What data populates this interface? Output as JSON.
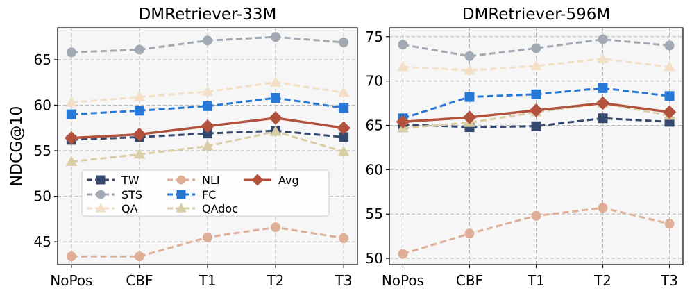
{
  "chart_data": [
    {
      "type": "line",
      "title": "DMRetriever-33M",
      "ylabel": "NDCG@10",
      "xlabel": "",
      "categories": [
        "NoPos",
        "CBF",
        "T1",
        "T2",
        "T3"
      ],
      "ylim": [
        42.5,
        68.5
      ],
      "yticks": [
        45,
        50,
        55,
        60,
        65
      ],
      "grid": true,
      "legend": "center-left",
      "series": [
        {
          "name": "TW",
          "color": "#34496b",
          "marker": "square",
          "values": [
            56.2,
            56.5,
            56.9,
            57.2,
            56.5
          ]
        },
        {
          "name": "STS",
          "color": "#a1a9b2",
          "marker": "circle",
          "values": [
            65.8,
            66.1,
            67.1,
            67.5,
            66.9
          ]
        },
        {
          "name": "QA",
          "color": "#f2dfc6",
          "marker": "triangle",
          "values": [
            60.3,
            60.9,
            61.5,
            62.5,
            61.4
          ]
        },
        {
          "name": "NLI",
          "color": "#dfae96",
          "marker": "circle",
          "values": [
            43.4,
            43.4,
            45.5,
            46.6,
            45.4
          ]
        },
        {
          "name": "FC",
          "color": "#2777d6",
          "marker": "square",
          "values": [
            59.0,
            59.4,
            59.9,
            60.8,
            59.7
          ]
        },
        {
          "name": "QAdoc",
          "color": "#d8cda4",
          "marker": "triangle",
          "values": [
            53.8,
            54.6,
            55.5,
            57.1,
            54.9
          ]
        },
        {
          "name": "Avg",
          "color": "#b2523c",
          "marker": "diamond",
          "values": [
            56.4,
            56.8,
            57.7,
            58.6,
            57.5
          ]
        }
      ]
    },
    {
      "type": "line",
      "title": "DMRetriever-596M",
      "ylabel": "",
      "xlabel": "",
      "categories": [
        "NoPos",
        "CBF",
        "T1",
        "T2",
        "T3"
      ],
      "ylim": [
        49.3,
        76.0
      ],
      "yticks": [
        50,
        55,
        60,
        65,
        70,
        75
      ],
      "grid": true,
      "series": [
        {
          "name": "TW",
          "color": "#34496b",
          "marker": "square",
          "values": [
            65.1,
            64.8,
            64.9,
            65.8,
            65.4
          ]
        },
        {
          "name": "STS",
          "color": "#a1a9b2",
          "marker": "circle",
          "values": [
            74.1,
            72.8,
            73.7,
            74.7,
            74.0
          ]
        },
        {
          "name": "QA",
          "color": "#f2dfc6",
          "marker": "triangle",
          "values": [
            71.6,
            71.2,
            71.7,
            72.5,
            71.6
          ]
        },
        {
          "name": "NLI",
          "color": "#dfae96",
          "marker": "circle",
          "values": [
            50.5,
            52.8,
            54.8,
            55.7,
            53.9
          ]
        },
        {
          "name": "FC",
          "color": "#2777d6",
          "marker": "square",
          "values": [
            65.8,
            68.2,
            68.5,
            69.2,
            68.3
          ]
        },
        {
          "name": "QAdoc",
          "color": "#d8cda4",
          "marker": "triangle",
          "values": [
            64.7,
            65.3,
            66.5,
            67.5,
            66.1
          ]
        },
        {
          "name": "Avg",
          "color": "#b2523c",
          "marker": "diamond",
          "values": [
            65.4,
            65.9,
            66.7,
            67.5,
            66.5
          ]
        }
      ]
    }
  ]
}
